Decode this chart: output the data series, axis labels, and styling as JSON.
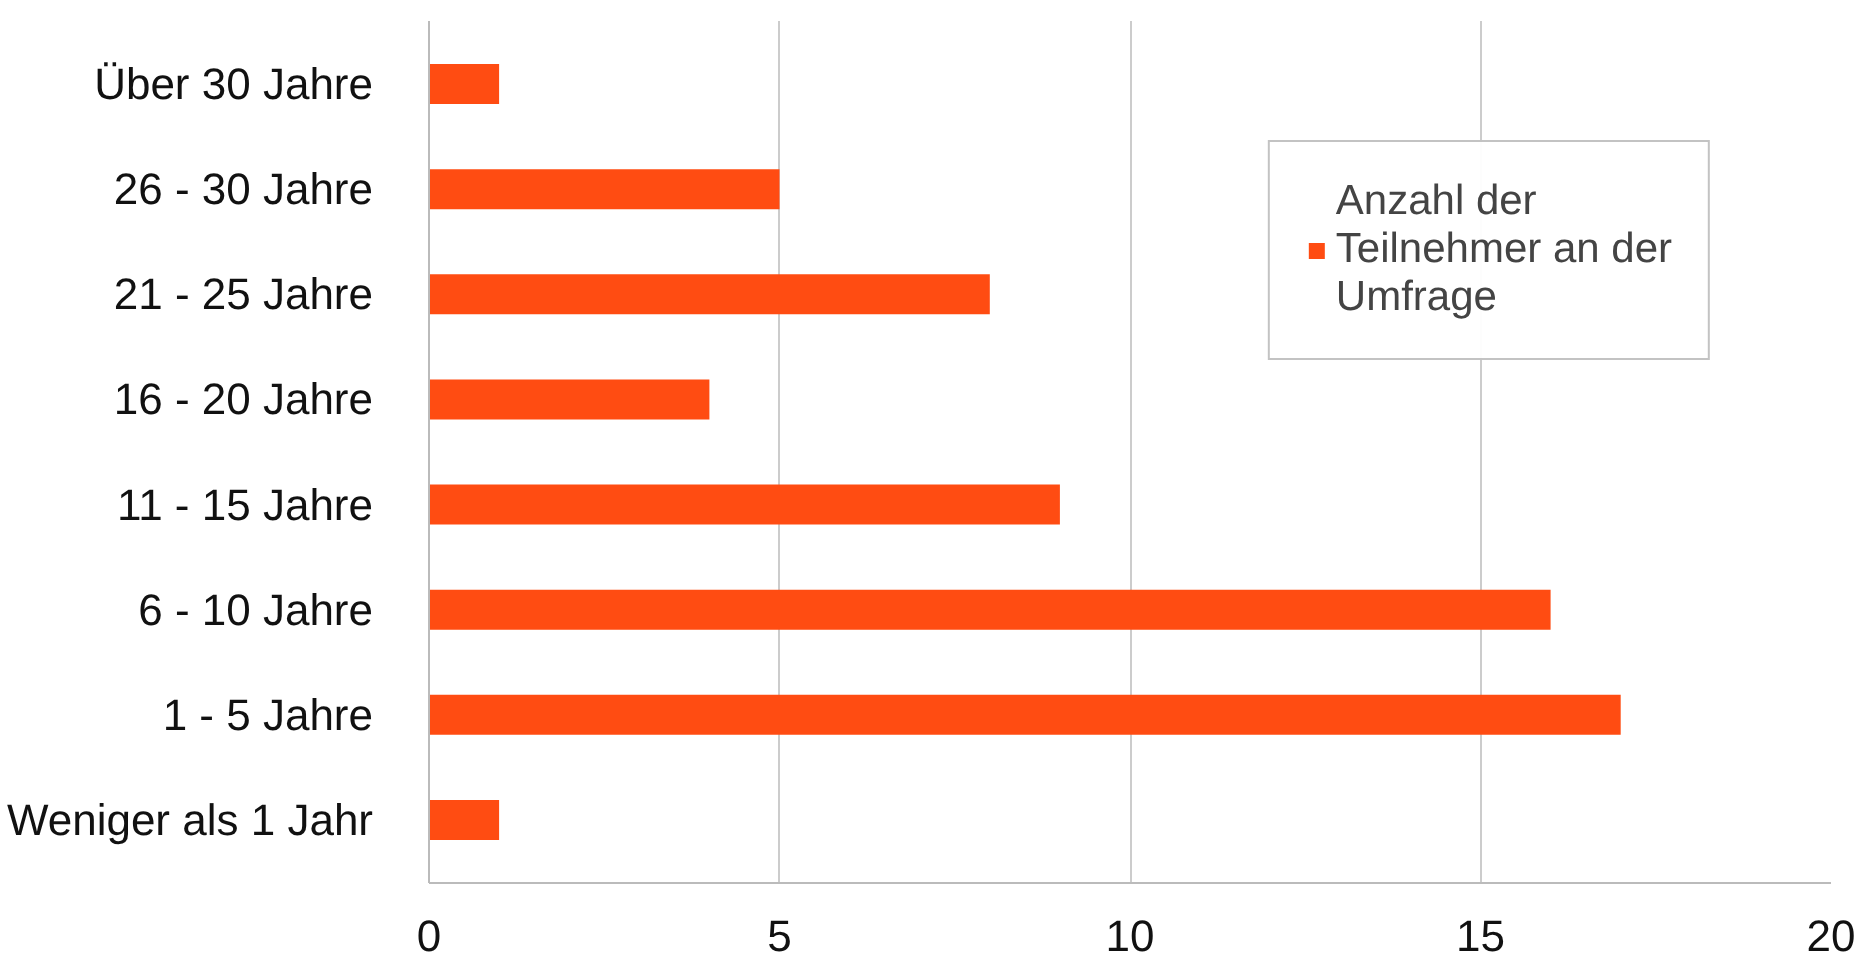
{
  "chart_data": {
    "type": "bar",
    "orientation": "horizontal",
    "categories": [
      "Über 30 Jahre",
      "26 - 30 Jahre",
      "21 - 25 Jahre",
      "16 - 20 Jahre",
      "11 - 15 Jahre",
      "6 - 10 Jahre",
      "1 - 5 Jahre",
      "Weniger als 1 Jahr"
    ],
    "series": [
      {
        "name": "Anzahl der Teilnehmer an der Umfrage",
        "color": "#ff4c12",
        "values": [
          1,
          5,
          8,
          4,
          9,
          16,
          17,
          1
        ]
      }
    ],
    "xlim": [
      0,
      20
    ],
    "xticks": [
      0,
      5,
      10,
      15,
      20
    ],
    "grid": "x",
    "legend": "top right"
  }
}
